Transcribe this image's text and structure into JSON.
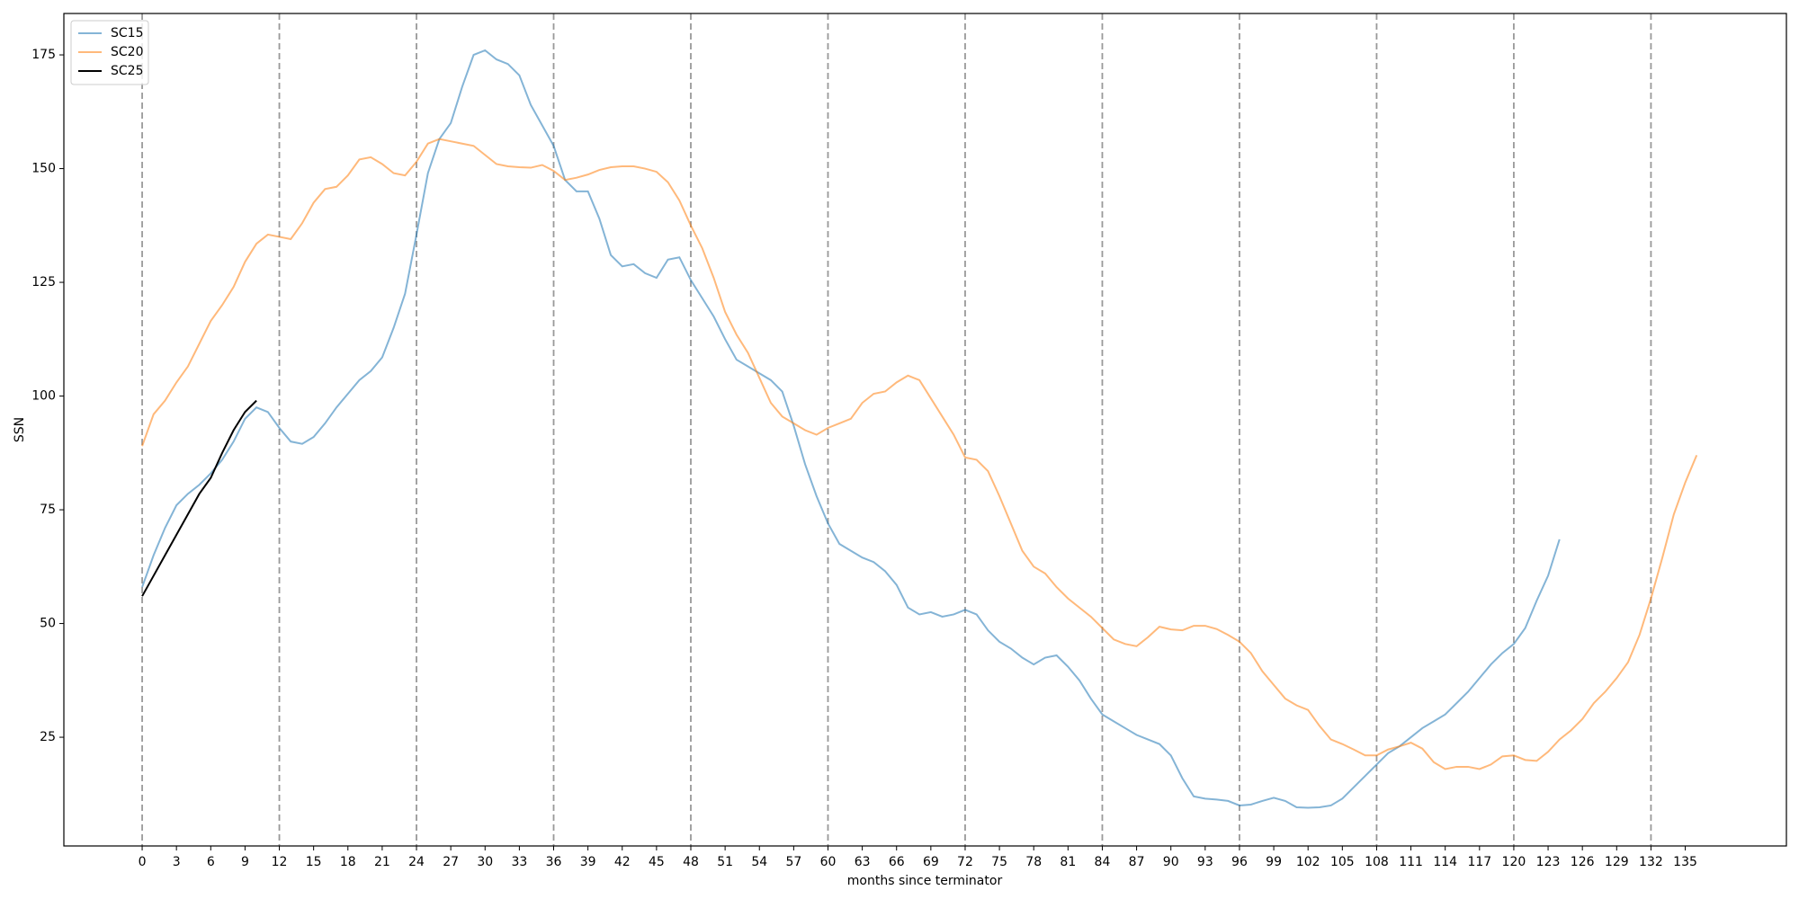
{
  "chart_data": {
    "type": "line",
    "xlabel": "months since terminator",
    "ylabel": "SSN",
    "xlim": [
      -6.85,
      143.85
    ],
    "ylim": [
      1.1,
      184.1
    ],
    "xticks": [
      0,
      3,
      6,
      9,
      12,
      15,
      18,
      21,
      24,
      27,
      30,
      33,
      36,
      39,
      42,
      45,
      48,
      51,
      54,
      57,
      60,
      63,
      66,
      69,
      72,
      75,
      78,
      81,
      84,
      87,
      90,
      93,
      96,
      99,
      102,
      105,
      108,
      111,
      114,
      117,
      120,
      123,
      126,
      129,
      132,
      135
    ],
    "yticks": [
      25,
      50,
      75,
      100,
      125,
      150,
      175
    ],
    "vlines": [
      0,
      12,
      24,
      36,
      48,
      60,
      72,
      84,
      96,
      108,
      120,
      132
    ],
    "vline_color": "#999999",
    "legend": "upper left",
    "series": [
      {
        "name": "SC15",
        "color": "#1f77b4",
        "opacity": 0.55,
        "x": [
          0,
          1,
          2,
          3,
          4,
          5,
          6,
          7,
          8,
          9,
          10,
          11,
          12,
          13,
          14,
          15,
          16,
          17,
          18,
          19,
          20,
          21,
          22,
          23,
          24,
          25,
          26,
          27,
          28,
          29,
          30,
          31,
          32,
          33,
          34,
          35,
          36,
          37,
          38,
          39,
          40,
          41,
          42,
          43,
          44,
          45,
          46,
          47,
          48,
          49,
          50,
          51,
          52,
          53,
          54,
          55,
          56,
          57,
          58,
          59,
          60,
          61,
          62,
          63,
          64,
          65,
          66,
          67,
          68,
          69,
          70,
          71,
          72,
          73,
          74,
          75,
          76,
          77,
          78,
          79,
          80,
          81,
          82,
          83,
          84,
          85,
          86,
          87,
          88,
          89,
          90,
          91,
          92,
          93,
          94,
          95,
          96,
          97,
          98,
          99,
          100,
          101,
          102,
          103,
          104,
          105,
          106,
          107,
          108,
          109,
          110,
          111,
          112,
          113,
          114,
          115,
          116,
          117,
          118,
          119,
          120,
          121,
          122,
          123,
          124
        ],
        "values": [
          58,
          65,
          71,
          76,
          78.5,
          80.5,
          83,
          86,
          90,
          95,
          97.5,
          96.5,
          93,
          90,
          89.5,
          91,
          94,
          97.5,
          100.5,
          103.5,
          105.5,
          108.5,
          115,
          122.5,
          135.5,
          149,
          156.5,
          160,
          168,
          175,
          176,
          174,
          173,
          170.5,
          164,
          159.5,
          155,
          147.5,
          145,
          145,
          139,
          131,
          128.5,
          129,
          127,
          126,
          130,
          130.5,
          125.5,
          121.5,
          117.5,
          112.5,
          108,
          106.5,
          105,
          103.5,
          101,
          93.5,
          85,
          78,
          72,
          67.5,
          66,
          64.5,
          63.5,
          61.5,
          58.5,
          53.5,
          52,
          52.5,
          51.5,
          52,
          53,
          52,
          48.5,
          46,
          44.5,
          42.5,
          41,
          42.5,
          43,
          40.5,
          37.5,
          33.5,
          30,
          28.5,
          27,
          25.5,
          24.5,
          23.5,
          21,
          16,
          12,
          11.5,
          11.3,
          11,
          10,
          10.2,
          11,
          11.7,
          11,
          9.6,
          9.5,
          9.6,
          10,
          11.5,
          14,
          16.5,
          19,
          21.5,
          23,
          25,
          27,
          28.5,
          30,
          32.5,
          35,
          38,
          41,
          43.5,
          45.5,
          49,
          55,
          60.5,
          68.5
        ]
      },
      {
        "name": "SC20",
        "color": "#ff7f0e",
        "opacity": 0.55,
        "x": [
          0,
          1,
          2,
          3,
          4,
          5,
          6,
          7,
          8,
          9,
          10,
          11,
          12,
          13,
          14,
          15,
          16,
          17,
          18,
          19,
          20,
          21,
          22,
          23,
          24,
          25,
          26,
          27,
          28,
          29,
          30,
          31,
          32,
          33,
          34,
          35,
          36,
          37,
          38,
          39,
          40,
          41,
          42,
          43,
          44,
          45,
          46,
          47,
          48,
          49,
          50,
          51,
          52,
          53,
          54,
          55,
          56,
          57,
          58,
          59,
          60,
          61,
          62,
          63,
          64,
          65,
          66,
          67,
          68,
          69,
          70,
          71,
          72,
          73,
          74,
          75,
          76,
          77,
          78,
          79,
          80,
          81,
          82,
          83,
          84,
          85,
          86,
          87,
          88,
          89,
          90,
          91,
          92,
          93,
          94,
          95,
          96,
          97,
          98,
          99,
          100,
          101,
          102,
          103,
          104,
          105,
          106,
          107,
          108,
          109,
          110,
          111,
          112,
          113,
          114,
          115,
          116,
          117,
          118,
          119,
          120,
          121,
          122,
          123,
          124,
          125,
          126,
          127,
          128,
          129,
          130,
          131,
          132,
          133,
          134,
          135,
          136
        ],
        "values": [
          89,
          96,
          99,
          103,
          106.5,
          111.5,
          116.5,
          120,
          124,
          129.5,
          133.5,
          135.5,
          135,
          134.5,
          138,
          142.5,
          145.5,
          146,
          148.5,
          152,
          152.5,
          151,
          149,
          148.5,
          151.5,
          155.5,
          156.5,
          156,
          155.5,
          155,
          153,
          151,
          150.5,
          150.3,
          150.2,
          150.8,
          149.5,
          147.5,
          148,
          148.7,
          149.7,
          150.3,
          150.5,
          150.5,
          150,
          149.3,
          147,
          143,
          137.5,
          132.5,
          126,
          118.5,
          113.5,
          109.5,
          104,
          98.5,
          95.5,
          94,
          92.5,
          91.5,
          93,
          94,
          95,
          98.5,
          100.5,
          101,
          103,
          104.5,
          103.5,
          99.5,
          95.5,
          91.5,
          86.5,
          86,
          83.5,
          78,
          72,
          66,
          62.5,
          61,
          58,
          55.5,
          53.5,
          51.5,
          49,
          46.5,
          45.5,
          45,
          47,
          49.3,
          48.7,
          48.5,
          49.5,
          49.5,
          48.8,
          47.5,
          46,
          43.5,
          39.5,
          36.5,
          33.5,
          32,
          31,
          27.5,
          24.5,
          23.5,
          22.3,
          21,
          21,
          22.3,
          23,
          23.8,
          22.5,
          19.5,
          18,
          18.5,
          18.5,
          18,
          19,
          20.8,
          21,
          20,
          19.8,
          21.8,
          24.5,
          26.5,
          29,
          32.5,
          35,
          38,
          41.5,
          47.5,
          55.5,
          64.5,
          74,
          81,
          87
        ]
      },
      {
        "name": "SC25",
        "color": "#000000",
        "opacity": 1,
        "x": [
          0,
          1,
          2,
          3,
          4,
          5,
          6,
          7,
          8,
          9,
          10
        ],
        "values": [
          56,
          60.5,
          65,
          69.5,
          74,
          78.5,
          82,
          87.5,
          92.5,
          96.5,
          99
        ]
      }
    ]
  }
}
